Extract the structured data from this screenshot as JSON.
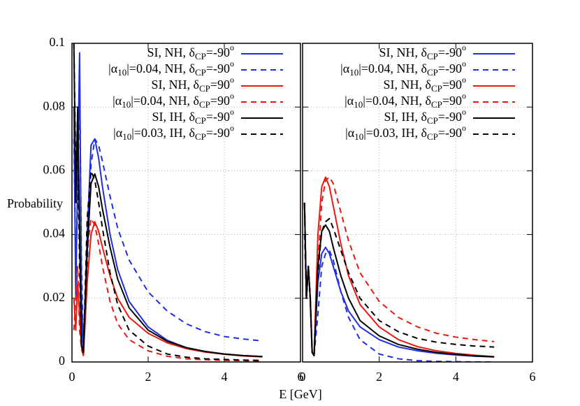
{
  "chart_data": [
    {
      "type": "line",
      "ylabel": "Probability",
      "xlabel": "E [GeV]",
      "xlim": [
        0,
        6
      ],
      "ylim": [
        0,
        0.1
      ],
      "xticks": [
        0,
        2,
        4,
        6
      ],
      "yticks": [
        0,
        0.02,
        0.04,
        0.06,
        0.08,
        0.1
      ],
      "grid": true,
      "legend": "upper right",
      "show_ytick_labels": true,
      "x": [
        0.05,
        0.1,
        0.15,
        0.2,
        0.25,
        0.3,
        0.4,
        0.5,
        0.6,
        0.7,
        0.8,
        1,
        1.2,
        1.5,
        2,
        2.5,
        3,
        3.5,
        4,
        4.5,
        5
      ],
      "series": [
        {
          "name": "SI, NH, δCP=-90o",
          "color": "#1f2fe0",
          "dashed": false,
          "values": [
            0.08,
            0.02,
            0.06,
            0.097,
            0.02,
            0.003,
            0.04,
            0.068,
            0.07,
            0.064,
            0.055,
            0.04,
            0.029,
            0.019,
            0.011,
            0.0068,
            0.0045,
            0.0033,
            0.0025,
            0.002,
            0.0017
          ]
        },
        {
          "name": "|α10|=0.04, NH, δCP=-90o",
          "color": "#1f2fe0",
          "dashed": true,
          "values": [
            0.07,
            0.03,
            0.05,
            0.09,
            0.03,
            0.004,
            0.03,
            0.062,
            0.07,
            0.068,
            0.063,
            0.052,
            0.042,
            0.032,
            0.022,
            0.016,
            0.012,
            0.0095,
            0.008,
            0.0072,
            0.0066
          ]
        },
        {
          "name": "SI, NH, δCP=90o",
          "color": "#e8190f",
          "dashed": false,
          "values": [
            0.02,
            0.01,
            0.025,
            0.015,
            0.005,
            0.002,
            0.025,
            0.04,
            0.044,
            0.041,
            0.036,
            0.027,
            0.02,
            0.014,
            0.009,
            0.006,
            0.0042,
            0.0031,
            0.0024,
            0.0019,
            0.0016
          ]
        },
        {
          "name": "|α10|=0.04, NH, δCP=90o",
          "color": "#e8190f",
          "dashed": true,
          "values": [
            0.01,
            0.02,
            0.03,
            0.01,
            0.004,
            0.002,
            0.035,
            0.045,
            0.043,
            0.037,
            0.03,
            0.019,
            0.012,
            0.007,
            0.0035,
            0.0018,
            0.001,
            0.0007,
            0.0005,
            0.0004,
            0.0003
          ]
        },
        {
          "name": "SI, IH, δCP=-90o",
          "color": "#000000",
          "dashed": false,
          "values": [
            0.1,
            0.05,
            0.08,
            0.04,
            0.005,
            0.003,
            0.035,
            0.056,
            0.059,
            0.055,
            0.048,
            0.036,
            0.026,
            0.017,
            0.01,
            0.0065,
            0.0045,
            0.0033,
            0.0025,
            0.002,
            0.0017
          ]
        },
        {
          "name": "|α10|=0.03, IH, δCP=-90o",
          "color": "#000000",
          "dashed": true,
          "values": [
            0.1,
            0.06,
            0.07,
            0.03,
            0.005,
            0.003,
            0.045,
            0.06,
            0.057,
            0.05,
            0.042,
            0.028,
            0.018,
            0.01,
            0.005,
            0.0025,
            0.0015,
            0.001,
            0.0008,
            0.0006,
            0.0005
          ]
        }
      ]
    },
    {
      "type": "line",
      "xlim": [
        0,
        6
      ],
      "ylim": [
        0,
        0.1
      ],
      "xticks": [
        0,
        2,
        4,
        6
      ],
      "yticks": [
        0,
        0.02,
        0.04,
        0.06,
        0.08,
        0.1
      ],
      "grid": true,
      "legend": "upper right",
      "show_ytick_labels": false,
      "x": [
        0.05,
        0.1,
        0.15,
        0.2,
        0.25,
        0.3,
        0.4,
        0.5,
        0.6,
        0.7,
        0.8,
        1,
        1.2,
        1.5,
        2,
        2.5,
        3,
        3.5,
        4,
        4.5,
        5
      ],
      "series": [
        {
          "name": "SI, NH, δCP=-90o",
          "color": "#1f2fe0",
          "dashed": false,
          "values": [
            0.05,
            0.02,
            0.03,
            0.02,
            0.003,
            0.002,
            0.025,
            0.034,
            0.036,
            0.034,
            0.03,
            0.022,
            0.016,
            0.011,
            0.007,
            0.0047,
            0.0035,
            0.0027,
            0.0022,
            0.0018,
            0.0016
          ]
        },
        {
          "name": "|α10|=0.04, NH, δCP=-90o",
          "color": "#1f2fe0",
          "dashed": true,
          "values": [
            0.04,
            0.02,
            0.03,
            0.02,
            0.003,
            0.002,
            0.015,
            0.03,
            0.034,
            0.035,
            0.032,
            0.022,
            0.014,
            0.007,
            0.0025,
            0.001,
            0.0004,
            0.0002,
            0.0001,
            0,
            0
          ]
        },
        {
          "name": "SI, NH, δCP=90o",
          "color": "#e8190f",
          "dashed": false,
          "values": [
            0.05,
            0.02,
            0.03,
            0.02,
            0.003,
            0.002,
            0.04,
            0.055,
            0.058,
            0.055,
            0.049,
            0.037,
            0.027,
            0.018,
            0.011,
            0.007,
            0.0048,
            0.0035,
            0.0027,
            0.0021,
            0.0017
          ]
        },
        {
          "name": "|α10|=0.04, NH, δCP=90o",
          "color": "#e8190f",
          "dashed": true,
          "values": [
            0.05,
            0.02,
            0.03,
            0.02,
            0.003,
            0.002,
            0.03,
            0.05,
            0.057,
            0.058,
            0.056,
            0.047,
            0.038,
            0.028,
            0.019,
            0.014,
            0.011,
            0.009,
            0.0078,
            0.007,
            0.0064
          ]
        },
        {
          "name": "SI, IH, δCP=-90o",
          "color": "#000000",
          "dashed": false,
          "values": [
            0.05,
            0.02,
            0.03,
            0.02,
            0.003,
            0.002,
            0.03,
            0.041,
            0.043,
            0.041,
            0.036,
            0.027,
            0.02,
            0.013,
            0.0082,
            0.0055,
            0.004,
            0.003,
            0.0024,
            0.0019,
            0.0016
          ]
        },
        {
          "name": "|α10|=0.03, IH, δCP=-90o",
          "color": "#000000",
          "dashed": true,
          "values": [
            0.05,
            0.02,
            0.03,
            0.02,
            0.003,
            0.002,
            0.028,
            0.041,
            0.044,
            0.045,
            0.042,
            0.035,
            0.028,
            0.02,
            0.013,
            0.0095,
            0.0074,
            0.0062,
            0.0055,
            0.005,
            0.0047
          ]
        }
      ]
    }
  ]
}
